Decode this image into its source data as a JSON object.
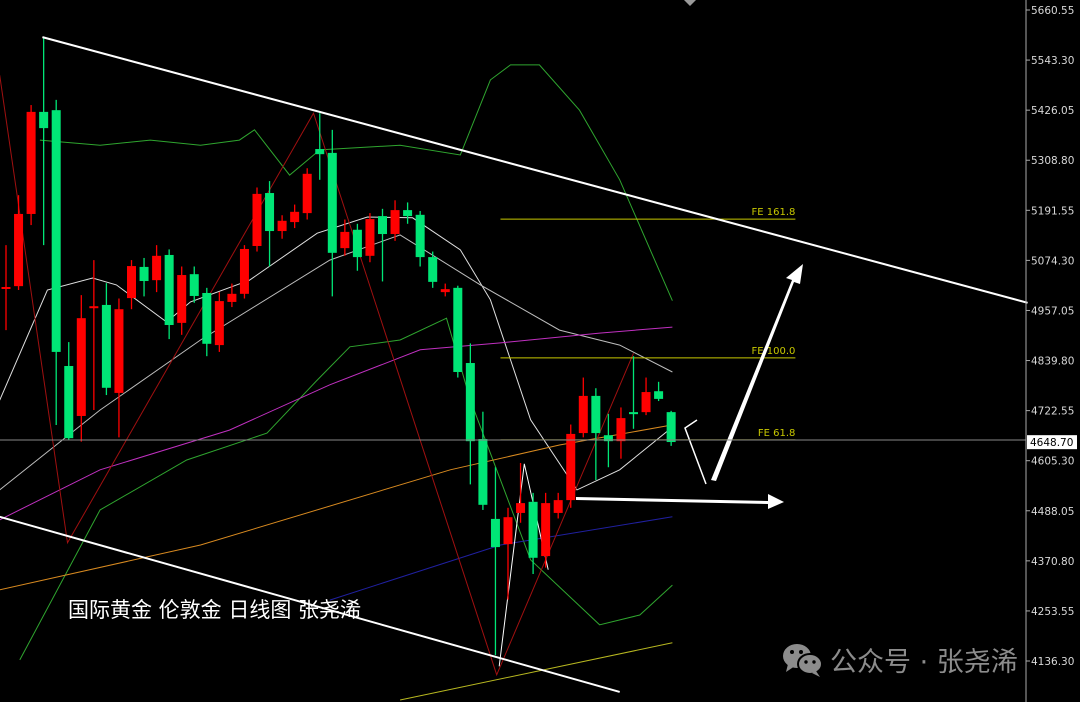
{
  "chart_title": "国际黄金 伦敦金 日线图 张尧浠",
  "watermark": {
    "icon": "wechat-icon",
    "text": "公众号 · 张尧浠"
  },
  "colors": {
    "background": "#000000",
    "up": "#ff0000",
    "down": "#00e676",
    "trendline": "#ffffff",
    "fib": "#c8c800"
  },
  "chart_data": {
    "type": "candlestick",
    "title": "国际黄金 伦敦金 日线图 张尧浠",
    "ylim": [
      4045,
      5680
    ],
    "y_ticks": [
      "5660.55",
      "5543.30",
      "5426.05",
      "5308.80",
      "5191.55",
      "5074.30",
      "4957.05",
      "4839.80",
      "4722.55",
      "4605.30",
      "4488.05",
      "4370.80",
      "4253.55",
      "4136.30"
    ],
    "current_price": "4648.70",
    "grid": false,
    "ohlc": [
      [
        5008,
        5110,
        4911,
        5012
      ],
      [
        5014,
        5227,
        5005,
        5183
      ],
      [
        5183,
        5438,
        5157,
        5422
      ],
      [
        5422,
        5597,
        5110,
        5384
      ],
      [
        5426,
        5450,
        4689,
        4860
      ],
      [
        4827,
        4883,
        4654,
        4658
      ],
      [
        4710,
        4993,
        4650,
        4939
      ],
      [
        4963,
        5075,
        4724,
        4967
      ],
      [
        4970,
        5021,
        4759,
        4776
      ],
      [
        4764,
        4985,
        4660,
        4960
      ],
      [
        4986,
        5075,
        4960,
        5061
      ],
      [
        5059,
        5080,
        4990,
        5026
      ],
      [
        5028,
        5110,
        5000,
        5085
      ],
      [
        5087,
        5100,
        4890,
        4923
      ],
      [
        4928,
        5060,
        4900,
        5040
      ],
      [
        5042,
        5060,
        4975,
        4991
      ],
      [
        4998,
        5010,
        4850,
        4879
      ],
      [
        4876,
        5000,
        4860,
        4979
      ],
      [
        4977,
        5020,
        4965,
        4996
      ],
      [
        4996,
        5110,
        4985,
        5101
      ],
      [
        5108,
        5245,
        5095,
        5230
      ],
      [
        5232,
        5260,
        5060,
        5143
      ],
      [
        5143,
        5180,
        5125,
        5167
      ],
      [
        5164,
        5205,
        5150,
        5188
      ],
      [
        5185,
        5290,
        5170,
        5277
      ],
      [
        5335,
        5419,
        5263,
        5323
      ],
      [
        5326,
        5380,
        4990,
        5092
      ],
      [
        5103,
        5170,
        5085,
        5141
      ],
      [
        5146,
        5160,
        5050,
        5082
      ],
      [
        5085,
        5185,
        5070,
        5171
      ],
      [
        5178,
        5195,
        5025,
        5136
      ],
      [
        5136,
        5215,
        5120,
        5192
      ],
      [
        5192,
        5210,
        5160,
        5178
      ],
      [
        5181,
        5190,
        5060,
        5082
      ],
      [
        5082,
        5095,
        5010,
        5024
      ],
      [
        5000,
        5020,
        4990,
        5007
      ],
      [
        5010,
        5015,
        4800,
        4813
      ],
      [
        4834,
        4880,
        4550,
        4651
      ],
      [
        4656,
        4720,
        4490,
        4502
      ],
      [
        4469,
        4590,
        4150,
        4403
      ],
      [
        4410,
        4495,
        4280,
        4473
      ],
      [
        4483,
        4600,
        4460,
        4506
      ],
      [
        4509,
        4530,
        4340,
        4378
      ],
      [
        4382,
        4530,
        4355,
        4506
      ],
      [
        4483,
        4530,
        4470,
        4513
      ],
      [
        4513,
        4690,
        4495,
        4668
      ],
      [
        4670,
        4800,
        4660,
        4757
      ],
      [
        4757,
        4775,
        4560,
        4670
      ],
      [
        4665,
        4715,
        4590,
        4651
      ],
      [
        4651,
        4730,
        4610,
        4705
      ],
      [
        4719,
        4850,
        4680,
        4717
      ],
      [
        4719,
        4800,
        4712,
        4766
      ],
      [
        4768,
        4790,
        4745,
        4750
      ],
      [
        4719,
        4722,
        4640,
        4649
      ]
    ],
    "overlays": [
      {
        "color": "#2fa52f",
        "points": [
          [
            2.7,
            5356
          ],
          [
            7.5,
            5344
          ],
          [
            11.5,
            5356
          ],
          [
            15.5,
            5344
          ],
          [
            18.6,
            5356
          ],
          [
            19.8,
            5380
          ],
          [
            22.6,
            5274
          ],
          [
            25,
            5333
          ],
          [
            31.4,
            5344
          ],
          [
            36.2,
            5321
          ],
          [
            38.6,
            5497
          ],
          [
            40.2,
            5532
          ],
          [
            42.5,
            5532
          ],
          [
            45.7,
            5426
          ],
          [
            48.9,
            5263
          ],
          [
            53.1,
            4980
          ]
        ]
      },
      {
        "color": "#2fa52f",
        "points": [
          [
            1.1,
            4139
          ],
          [
            7.5,
            4490
          ],
          [
            14.4,
            4607
          ],
          [
            20.8,
            4670
          ],
          [
            24.8,
            4794
          ],
          [
            27.4,
            4872
          ],
          [
            31.4,
            4888
          ],
          [
            35.1,
            4939
          ],
          [
            37,
            4747
          ],
          [
            41.8,
            4373
          ],
          [
            47.3,
            4221
          ],
          [
            50.5,
            4244
          ],
          [
            53.1,
            4314
          ]
        ]
      },
      {
        "color": "#e0e0e0",
        "points": [
          [
            -0.5,
            4747
          ],
          [
            3.3,
            5005
          ],
          [
            6.9,
            5033
          ],
          [
            8.8,
            5017
          ],
          [
            12.8,
            4930
          ],
          [
            14.7,
            4977
          ],
          [
            19.4,
            5028
          ],
          [
            24.8,
            5138
          ],
          [
            28.8,
            5176
          ],
          [
            32.4,
            5174
          ],
          [
            36.2,
            5099
          ],
          [
            38.6,
            4982
          ],
          [
            41.8,
            4701
          ],
          [
            45.5,
            4537
          ],
          [
            48.9,
            4584
          ],
          [
            53.1,
            4684
          ]
        ]
      },
      {
        "color": "#bdbdbd",
        "points": [
          [
            -0.5,
            4537
          ],
          [
            7.5,
            4724
          ],
          [
            15.5,
            4888
          ],
          [
            25.8,
            5075
          ],
          [
            31.4,
            5134
          ],
          [
            37.8,
            5017
          ],
          [
            44.1,
            4911
          ],
          [
            48.9,
            4876
          ],
          [
            53.1,
            4813
          ]
        ]
      },
      {
        "color": "#c030c0",
        "points": [
          [
            -0.5,
            4467
          ],
          [
            7.5,
            4584
          ],
          [
            17.8,
            4677
          ],
          [
            25.8,
            4783
          ],
          [
            33,
            4865
          ],
          [
            39.4,
            4881
          ],
          [
            47.3,
            4904
          ],
          [
            53.1,
            4918
          ]
        ]
      },
      {
        "color": "#d88a20",
        "points": [
          [
            -0.5,
            4303
          ],
          [
            15.5,
            4408
          ],
          [
            35.4,
            4584
          ],
          [
            44.1,
            4642
          ],
          [
            53.1,
            4689
          ]
        ]
      },
      {
        "color": "#2020a0",
        "points": [
          [
            25.8,
            4279
          ],
          [
            39.4,
            4408
          ],
          [
            53.1,
            4474
          ]
        ]
      },
      {
        "color": "#b8b820",
        "points": [
          [
            31.4,
            4045
          ],
          [
            53.1,
            4179
          ]
        ]
      }
    ],
    "zigzag": {
      "color": "#a01010",
      "points": [
        [
          -0.5,
          5508
        ],
        [
          4.9,
          4413
        ],
        [
          24.5,
          5419
        ],
        [
          39.1,
          4104
        ],
        [
          50,
          4857
        ]
      ]
    },
    "zigzag_minor": {
      "color": "#ffffff",
      "points": [
        [
          39.3,
          4124
        ],
        [
          41.3,
          4598
        ],
        [
          43.2,
          4350
        ]
      ]
    },
    "trendlines": [
      {
        "name": "upper-channel",
        "points": [
          [
            2.9,
            5597
          ],
          [
            81.4,
            4975
          ]
        ]
      },
      {
        "name": "lower-channel",
        "points": [
          [
            -0.5,
            4474
          ],
          [
            48.9,
            4064
          ]
        ]
      }
    ],
    "fib_levels": [
      {
        "label": "FE 161.8",
        "price": 5171
      },
      {
        "label": "FE 100.0",
        "price": 4846
      },
      {
        "label": "FE 61.8",
        "price": 4654
      }
    ]
  }
}
